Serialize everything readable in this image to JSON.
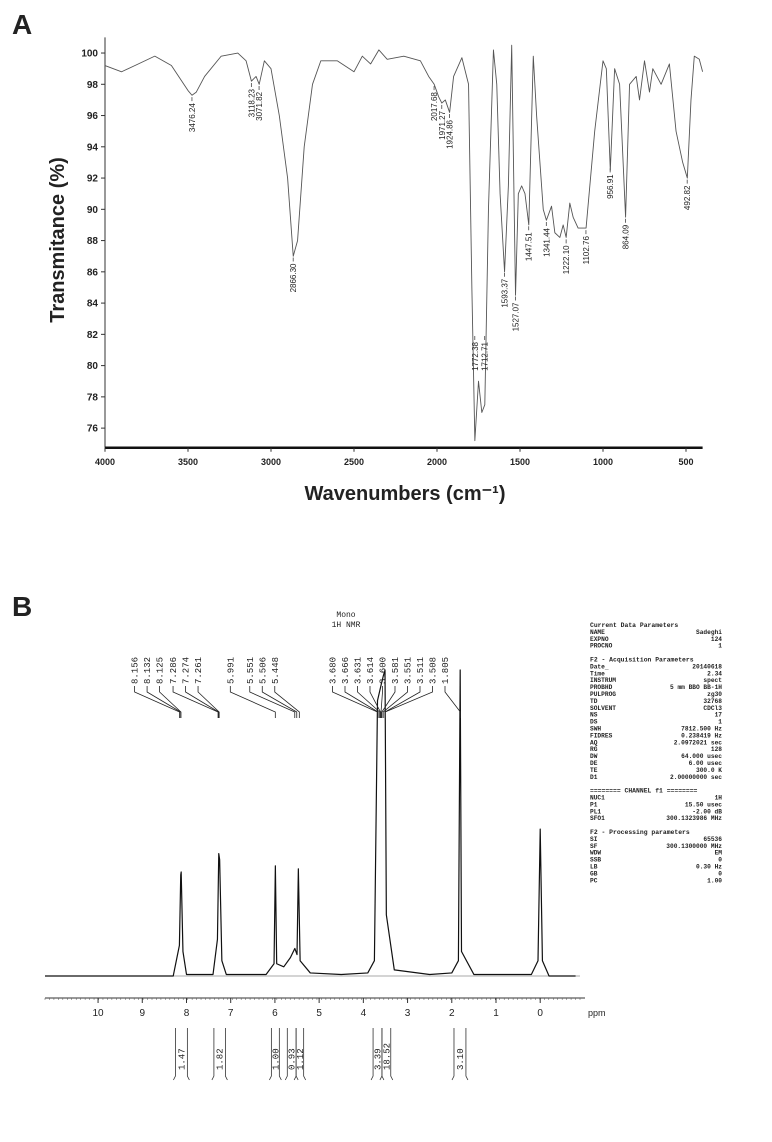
{
  "chart_data": [
    {
      "type": "line",
      "panel_label": "A",
      "xlabel": "Wavenumbers (cm⁻¹)",
      "ylabel": "Transmitance (%)",
      "xlim": [
        4000,
        400
      ],
      "ylim": [
        75,
        101
      ],
      "xticks": [
        4000,
        3500,
        3000,
        2500,
        2000,
        1500,
        1000,
        500
      ],
      "yticks": [
        76,
        78,
        80,
        82,
        84,
        86,
        88,
        90,
        92,
        94,
        96,
        98,
        100
      ],
      "color": "#555555",
      "x": [
        4000,
        3900,
        3800,
        3700,
        3600,
        3500,
        3476,
        3450,
        3400,
        3300,
        3200,
        3150,
        3118,
        3090,
        3071,
        3040,
        3000,
        2950,
        2900,
        2866,
        2840,
        2800,
        2750,
        2700,
        2600,
        2500,
        2450,
        2400,
        2350,
        2300,
        2200,
        2100,
        2050,
        2017,
        1990,
        1971,
        1950,
        1924,
        1900,
        1850,
        1810,
        1790,
        1772,
        1750,
        1730,
        1712,
        1690,
        1660,
        1640,
        1620,
        1593,
        1570,
        1550,
        1527,
        1510,
        1490,
        1470,
        1447,
        1420,
        1400,
        1360,
        1341,
        1310,
        1290,
        1260,
        1240,
        1222,
        1200,
        1180,
        1150,
        1102,
        1050,
        1000,
        980,
        956,
        930,
        900,
        864,
        840,
        800,
        780,
        750,
        720,
        700,
        650,
        600,
        560,
        520,
        492,
        470,
        450,
        420,
        400
      ],
      "values": [
        99.2,
        98.8,
        99.3,
        99.8,
        99.2,
        97.6,
        97.3,
        97.5,
        98.5,
        99.8,
        100,
        99.5,
        98.2,
        98.5,
        98,
        99.5,
        99,
        96,
        92,
        87,
        88,
        94,
        98,
        99.5,
        99.5,
        98.8,
        99.8,
        99.3,
        100.2,
        99.6,
        99.8,
        99.5,
        98.5,
        98,
        97.2,
        96.8,
        97,
        96.2,
        98.5,
        99.7,
        98,
        85,
        75.2,
        79,
        77,
        77.5,
        90,
        100.2,
        98,
        91,
        86,
        91.5,
        100.5,
        84.5,
        91,
        91.5,
        91,
        89,
        99.8,
        96,
        90,
        89.3,
        90.2,
        88.5,
        88.2,
        89,
        88.2,
        90.4,
        89.5,
        88.8,
        88.8,
        95,
        99.5,
        99,
        92.5,
        99,
        98,
        89.5,
        98,
        98.5,
        97,
        99.5,
        97.5,
        99,
        98,
        99.3,
        95,
        93,
        92,
        97,
        99.8,
        99.6,
        98.8
      ],
      "annotations": [
        {
          "value": 3476.24,
          "label": "3476.24"
        },
        {
          "value": 3118.23,
          "label": "3118.23"
        },
        {
          "value": 3071.82,
          "label": "3071.82"
        },
        {
          "value": 2866.3,
          "label": "2866.30"
        },
        {
          "value": 2017.68,
          "label": "2017.68"
        },
        {
          "value": 1971.27,
          "label": "1971.27"
        },
        {
          "value": 1924.86,
          "label": "1924.86"
        },
        {
          "value": 1772.38,
          "label": "1772.38"
        },
        {
          "value": 1712.71,
          "label": "1712.71"
        },
        {
          "value": 1593.37,
          "label": "1593.37"
        },
        {
          "value": 1527.07,
          "label": "1527.07"
        },
        {
          "value": 1447.51,
          "label": "1447.51"
        },
        {
          "value": 1341.44,
          "label": "1341.44"
        },
        {
          "value": 1222.1,
          "label": "1222.10"
        },
        {
          "value": 1102.76,
          "label": "1102.76"
        },
        {
          "value": 956.91,
          "label": "956.91"
        },
        {
          "value": 864.09,
          "label": "864.09"
        },
        {
          "value": 492.82,
          "label": "492.82"
        }
      ]
    },
    {
      "type": "line",
      "panel_label": "B",
      "title": "Mono",
      "subtitle": "1H NMR",
      "xlabel": "ppm",
      "xlim": [
        11.2,
        -0.9
      ],
      "ylim": [
        0,
        100
      ],
      "xticks": [
        10,
        9,
        8,
        7,
        6,
        5,
        4,
        3,
        2,
        1,
        0
      ],
      "color": "#111111",
      "x": [
        11.2,
        8.3,
        8.16,
        8.13,
        8.12,
        8.08,
        8.0,
        7.4,
        7.3,
        7.27,
        7.25,
        7.2,
        7.1,
        6.2,
        6.02,
        5.99,
        5.96,
        5.8,
        5.65,
        5.55,
        5.5,
        5.47,
        5.43,
        5.2,
        4.5,
        3.9,
        3.75,
        3.68,
        3.6,
        3.55,
        3.51,
        3.48,
        3.3,
        2.5,
        2.0,
        1.85,
        1.81,
        1.78,
        1.5,
        0.2,
        0.05,
        0,
        -0.05,
        -0.2,
        -0.8
      ],
      "values": [
        0,
        0,
        10,
        33,
        34,
        8,
        0.5,
        0.5,
        12,
        40,
        38,
        5,
        0.5,
        0.5,
        4,
        36,
        4,
        3,
        6,
        9,
        7,
        35,
        5,
        1,
        0.5,
        1,
        5,
        90,
        95,
        98,
        100,
        20,
        2,
        0.5,
        1,
        5,
        100,
        8,
        0.5,
        0.5,
        5,
        48,
        5,
        0,
        0
      ],
      "peak_labels": [
        {
          "value": 8.156,
          "label": "8.156"
        },
        {
          "value": 8.132,
          "label": "8.132"
        },
        {
          "value": 8.125,
          "label": "8.125"
        },
        {
          "value": 7.286,
          "label": "7.286"
        },
        {
          "value": 7.274,
          "label": "7.274"
        },
        {
          "value": 7.261,
          "label": "7.261"
        },
        {
          "value": 5.991,
          "label": "5.991"
        },
        {
          "value": 5.551,
          "label": "5.551"
        },
        {
          "value": 5.506,
          "label": "5.506"
        },
        {
          "value": 5.448,
          "label": "5.448"
        },
        {
          "value": 3.68,
          "label": "3.680"
        },
        {
          "value": 3.666,
          "label": "3.666"
        },
        {
          "value": 3.631,
          "label": "3.631"
        },
        {
          "value": 3.614,
          "label": "3.614"
        },
        {
          "value": 3.6,
          "label": "3.600"
        },
        {
          "value": 3.581,
          "label": "3.581"
        },
        {
          "value": 3.551,
          "label": "3.551"
        },
        {
          "value": 3.511,
          "label": "3.511"
        },
        {
          "value": 3.508,
          "label": "3.508"
        },
        {
          "value": 1.805,
          "label": "1.805"
        }
      ],
      "integrals": {
        "from": [
          8.25,
          7.38,
          6.08,
          5.72,
          5.52,
          3.78,
          3.58,
          1.95
        ],
        "to": [
          7.98,
          7.12,
          5.9,
          5.52,
          5.35,
          3.58,
          3.38,
          1.68
        ],
        "values": [
          1.47,
          1.82,
          1,
          0.93,
          1.12,
          3.39,
          18.52,
          3.1
        ],
        "value_labels": [
          "1.47",
          "1.82",
          "1.00",
          "0.93",
          "1.12",
          "3.39",
          "18.52",
          "3.10"
        ]
      },
      "parameters": [
        {
          "heading": "Current Data Parameters",
          "rows": [
            [
              "NAME",
              "Sadeghi"
            ],
            [
              "EXPNO",
              "124"
            ],
            [
              "PROCNO",
              "1"
            ]
          ]
        },
        {
          "heading": "F2 - Acquisition Parameters",
          "rows": [
            [
              "Date_",
              "20140618"
            ],
            [
              "Time",
              "2.34"
            ],
            [
              "INSTRUM",
              "spect"
            ],
            [
              "PROBHD",
              "5 mm BBO BB-1H"
            ],
            [
              "PULPROG",
              "zg30"
            ],
            [
              "TD",
              "32768"
            ],
            [
              "SOLVENT",
              "CDCl3"
            ],
            [
              "NS",
              "17"
            ],
            [
              "DS",
              "1"
            ],
            [
              "SWH",
              "7812.500 Hz"
            ],
            [
              "FIDRES",
              "0.238419 Hz"
            ],
            [
              "AQ",
              "2.0972021 sec"
            ],
            [
              "RG",
              "128"
            ],
            [
              "DW",
              "64.000 usec"
            ],
            [
              "DE",
              "6.00 usec"
            ],
            [
              "TE",
              "300.0 K"
            ],
            [
              "D1",
              "2.00000000 sec"
            ]
          ]
        },
        {
          "heading": "======== CHANNEL f1 ========",
          "rows": [
            [
              "NUC1",
              "1H"
            ],
            [
              "P1",
              "15.50 usec"
            ],
            [
              "PL1",
              "-2.00 dB"
            ],
            [
              "SFO1",
              "300.1323986 MHz"
            ]
          ]
        },
        {
          "heading": "F2 - Processing parameters",
          "rows": [
            [
              "SI",
              "65536"
            ],
            [
              "SF",
              "300.1300000 MHz"
            ],
            [
              "WDW",
              "EM"
            ],
            [
              "SSB",
              "0"
            ],
            [
              "LB",
              "0.30 Hz"
            ],
            [
              "GB",
              "0"
            ],
            [
              "PC",
              "1.00"
            ]
          ]
        }
      ]
    }
  ]
}
